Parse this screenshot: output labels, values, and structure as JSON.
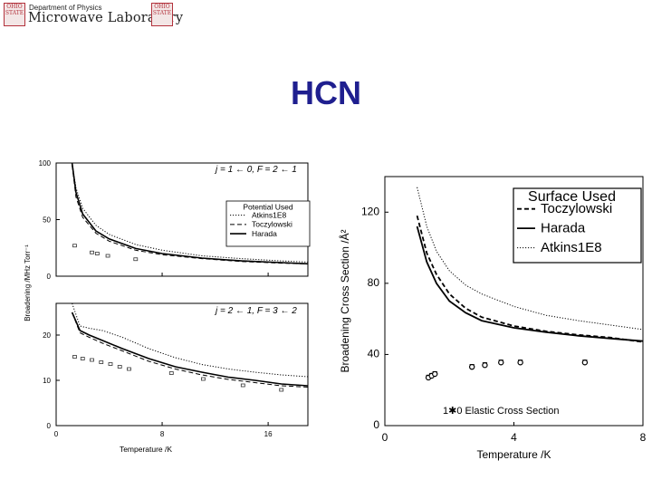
{
  "header": {
    "department": "Department of Physics",
    "lab_name": "Microwave Laboratory",
    "seal_left": "OHIO STATE",
    "seal_right": "OHIO STATE"
  },
  "slide": {
    "title": "HCN"
  },
  "chart_data": [
    {
      "type": "line",
      "panel": "left-top",
      "annotation": "j = 1 ← 0, F = 2 ← 1",
      "ylabel": "Broadening /MHz Torr⁻¹",
      "xlim": [
        0,
        19
      ],
      "ylim": [
        0,
        100
      ],
      "xticks": [
        "0",
        "8",
        "16"
      ],
      "yticks": [
        "0",
        "50",
        "100"
      ],
      "legend": {
        "title": "Potential Used",
        "position": "right",
        "entries": [
          "Atkins1E8",
          "Toczylowski",
          "Harada"
        ]
      },
      "series": [
        {
          "name": "Atkins1E8",
          "style": "dotted",
          "x": [
            1.2,
            1.5,
            2,
            3,
            4,
            6,
            8,
            11,
            14,
            17,
            19
          ],
          "y": [
            100,
            78,
            60,
            45,
            37,
            28,
            23,
            18,
            15.5,
            13.5,
            12.5
          ]
        },
        {
          "name": "Toczylowski",
          "style": "dashed",
          "x": [
            1.2,
            1.5,
            2,
            3,
            4,
            6,
            8,
            11,
            14,
            17,
            19
          ],
          "y": [
            98,
            70,
            52,
            38,
            31,
            23,
            19,
            15.5,
            13,
            11.5,
            10.8
          ]
        },
        {
          "name": "Harada",
          "style": "solid",
          "x": [
            1.2,
            1.5,
            2,
            3,
            4,
            6,
            8,
            11,
            14,
            17,
            19
          ],
          "y": [
            100,
            74,
            55,
            40,
            33,
            24.5,
            20,
            16,
            13.5,
            12,
            11
          ]
        }
      ],
      "experimental": [
        {
          "x": 1.4,
          "y": 27
        },
        {
          "x": 2.7,
          "y": 21
        },
        {
          "x": 3.1,
          "y": 20
        },
        {
          "x": 3.9,
          "y": 18
        },
        {
          "x": 6.0,
          "y": 15
        }
      ]
    },
    {
      "type": "line",
      "panel": "left-bottom",
      "annotation": "j = 2 ← 1, F = 3 ← 2",
      "xlabel": "Temperature /K",
      "xlim": [
        0,
        19
      ],
      "ylim": [
        0,
        27
      ],
      "xticks": [
        "0",
        "8",
        "16"
      ],
      "yticks": [
        "0",
        "10",
        "20"
      ],
      "series": [
        {
          "name": "Atkins1E8",
          "style": "dotted",
          "x": [
            1.2,
            1.8,
            2.5,
            3.5,
            5,
            7,
            9,
            11,
            13,
            15,
            17,
            19
          ],
          "y": [
            27,
            22,
            21.5,
            21,
            19.5,
            17,
            15,
            13.5,
            12.5,
            11.8,
            11.2,
            10.8
          ]
        },
        {
          "name": "Toczylowski",
          "style": "dashed",
          "x": [
            1.2,
            1.8,
            2.5,
            3.5,
            5,
            7,
            9,
            11,
            13,
            15,
            17,
            19
          ],
          "y": [
            25,
            20.5,
            19.5,
            18.2,
            16.5,
            14.2,
            12.5,
            11.2,
            10.2,
            9.5,
            8.8,
            8.5
          ]
        },
        {
          "name": "Harada",
          "style": "solid",
          "x": [
            1.2,
            1.8,
            2.5,
            3.5,
            5,
            7,
            9,
            11,
            13,
            15,
            17,
            19
          ],
          "y": [
            25,
            21,
            20,
            18.8,
            17,
            14.8,
            13,
            11.8,
            10.7,
            10,
            9.2,
            8.8
          ]
        }
      ],
      "experimental": [
        {
          "x": 1.4,
          "y": 15.2
        },
        {
          "x": 2.0,
          "y": 14.8
        },
        {
          "x": 2.7,
          "y": 14.5
        },
        {
          "x": 3.4,
          "y": 14
        },
        {
          "x": 4.1,
          "y": 13.6
        },
        {
          "x": 4.8,
          "y": 13
        },
        {
          "x": 5.5,
          "y": 12.5
        },
        {
          "x": 8.7,
          "y": 11.6
        },
        {
          "x": 11.1,
          "y": 10.3
        },
        {
          "x": 14.1,
          "y": 8.9
        },
        {
          "x": 17.0,
          "y": 7.9
        }
      ]
    },
    {
      "type": "line",
      "panel": "right",
      "xlabel": "Temperature /K",
      "ylabel": "Broadening Cross Section /Å²",
      "xlim": [
        0,
        8
      ],
      "ylim": [
        0,
        140
      ],
      "xticks": [
        "0",
        "4",
        "8"
      ],
      "yticks": [
        "0",
        "40",
        "80",
        "120"
      ],
      "annotation": "1✱0 Elastic Cross Section",
      "legend": {
        "title": "Surface Used",
        "position": "top-right",
        "entries": [
          "Toczylowski",
          "Harada",
          "Atkins1E8"
        ]
      },
      "series": [
        {
          "name": "Toczylowski",
          "style": "dashed",
          "x": [
            1,
            1.3,
            1.6,
            2,
            2.5,
            3,
            4,
            5,
            6,
            7,
            8
          ],
          "y": [
            118,
            97,
            85,
            74,
            66,
            61,
            56,
            53,
            51,
            49.5,
            47
          ]
        },
        {
          "name": "Harada",
          "style": "solid",
          "x": [
            1,
            1.3,
            1.6,
            2,
            2.5,
            3,
            4,
            5,
            6,
            7,
            8
          ],
          "y": [
            112,
            92,
            80,
            70,
            63.5,
            59,
            55,
            52.5,
            50.5,
            49,
            47.5
          ]
        },
        {
          "name": "Atkins1E8",
          "style": "dotted",
          "x": [
            1,
            1.3,
            1.6,
            2,
            2.5,
            3,
            4,
            5,
            6,
            7,
            8
          ],
          "y": [
            134,
            112,
            98,
            87,
            79,
            74,
            67,
            62,
            59,
            56.5,
            54
          ]
        }
      ],
      "experimental": [
        {
          "x": 1.35,
          "y": 27
        },
        {
          "x": 1.45,
          "y": 28
        },
        {
          "x": 1.55,
          "y": 29
        },
        {
          "x": 2.7,
          "y": 33
        },
        {
          "x": 3.1,
          "y": 34
        },
        {
          "x": 3.6,
          "y": 35.5
        },
        {
          "x": 4.2,
          "y": 35.5
        },
        {
          "x": 6.2,
          "y": 35.5
        }
      ]
    }
  ],
  "colors": {
    "title": "#1f1f8f",
    "seal": "#b3323c",
    "axis": "#000000"
  }
}
